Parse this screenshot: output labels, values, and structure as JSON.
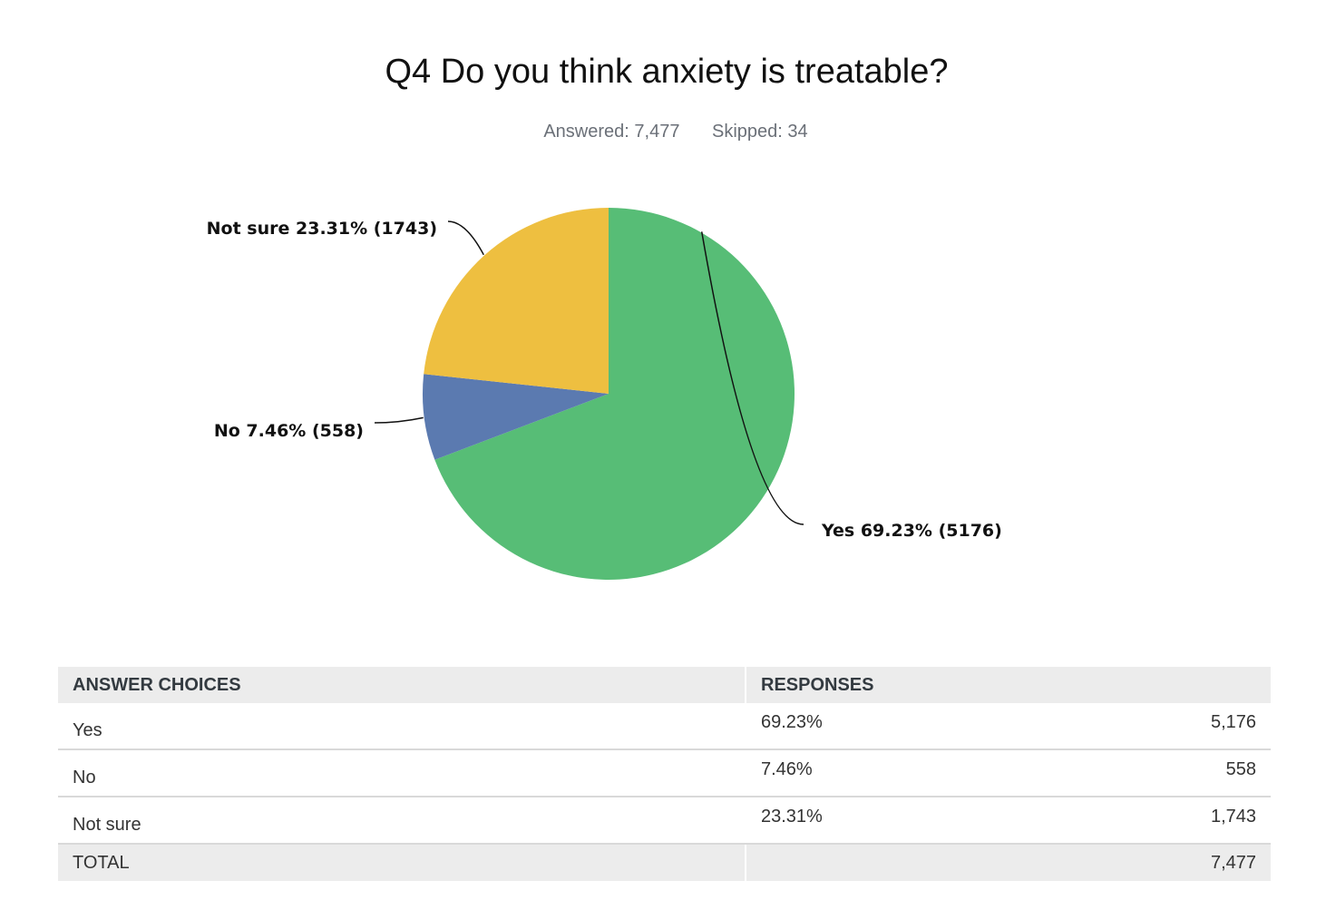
{
  "question": {
    "title": "Q4 Do you think anxiety is treatable?",
    "answered": "Answered: 7,477",
    "skipped": "Skipped: 34"
  },
  "colors": {
    "yes": "#57bd76",
    "no": "#5b7ab0",
    "not_sure": "#eebf40"
  },
  "chart_data": {
    "type": "pie",
    "slices": [
      {
        "label": "Yes",
        "percent": 69.23,
        "count": 5176,
        "text": "Yes 69.23% (5176)",
        "color": "#57bd76"
      },
      {
        "label": "No",
        "percent": 7.46,
        "count": 558,
        "text": "No 7.46% (558)",
        "color": "#5b7ab0"
      },
      {
        "label": "Not sure",
        "percent": 23.31,
        "count": 1743,
        "text": "Not sure 23.31% (1743)",
        "color": "#eebf40"
      }
    ]
  },
  "table": {
    "headers": {
      "choices": "ANSWER CHOICES",
      "responses": "RESPONSES"
    },
    "rows": [
      {
        "choice": "Yes",
        "percent": "69.23%",
        "count": "5,176"
      },
      {
        "choice": "No",
        "percent": "7.46%",
        "count": "558"
      },
      {
        "choice": "Not sure",
        "percent": "23.31%",
        "count": "1,743"
      }
    ],
    "total": {
      "label": "TOTAL",
      "count": "7,477"
    }
  }
}
